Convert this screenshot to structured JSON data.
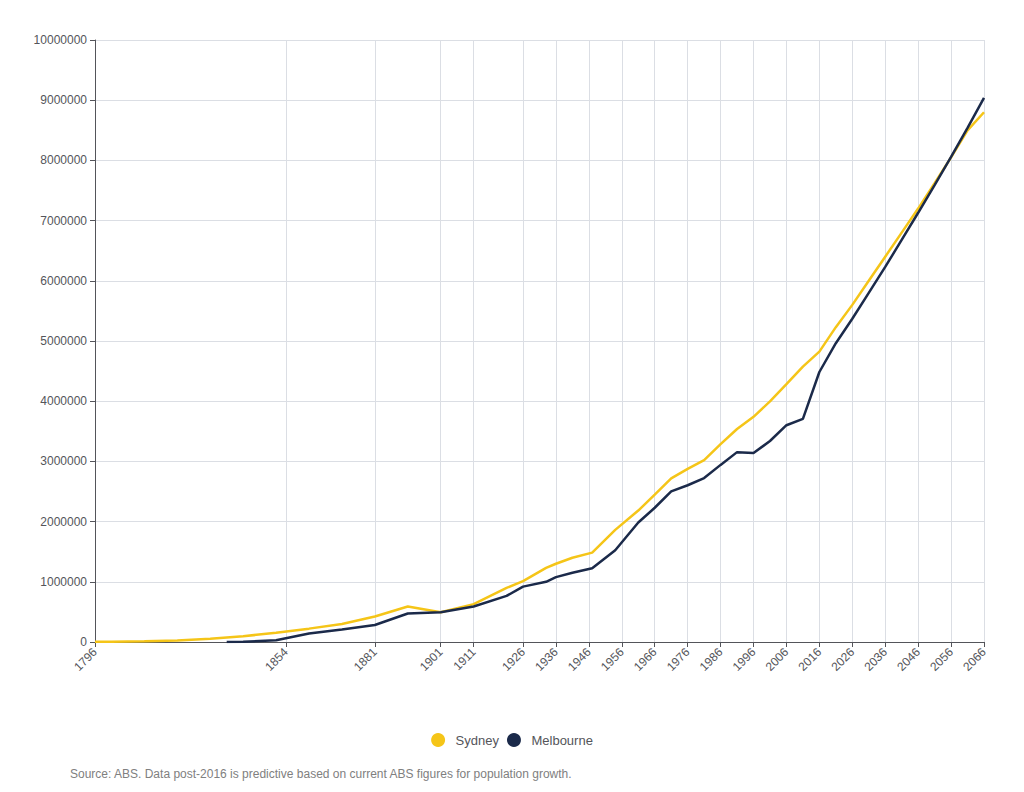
{
  "chart_data": {
    "type": "line",
    "series": [
      {
        "name": "Sydney",
        "color": "#F5C518",
        "x": [
          1796,
          1801,
          1811,
          1821,
          1831,
          1841,
          1851,
          1861,
          1871,
          1881,
          1891,
          1901,
          1911,
          1921,
          1926,
          1933,
          1936,
          1941,
          1947,
          1954,
          1961,
          1966,
          1971,
          1976,
          1981,
          1986,
          1991,
          1996,
          2001,
          2006,
          2011,
          2016,
          2021,
          2026,
          2031,
          2036,
          2041,
          2046,
          2051,
          2056,
          2061,
          2066
        ],
        "values": [
          3000,
          6000,
          12000,
          26000,
          54000,
          95000,
          155000,
          222000,
          300000,
          423000,
          590000,
          493000,
          629000,
          899000,
          1010000,
          1230000,
          1300000,
          1400000,
          1484000,
          1863000,
          2183000,
          2448000,
          2717000,
          2876000,
          3021000,
          3287000,
          3538000,
          3741000,
          3997000,
          4282000,
          4575000,
          4823000,
          5230000,
          5600000,
          6000000,
          6400000,
          6800000,
          7200000,
          7620000,
          8050000,
          8500000,
          8800000
        ]
      },
      {
        "name": "Melbourne",
        "color": "#1B2A4A",
        "x": [
          1836,
          1841,
          1851,
          1861,
          1871,
          1881,
          1891,
          1901,
          1911,
          1921,
          1926,
          1933,
          1936,
          1941,
          1947,
          1954,
          1961,
          1966,
          1971,
          1976,
          1981,
          1986,
          1991,
          1996,
          2001,
          2006,
          2011,
          2016,
          2021,
          2026,
          2031,
          2036,
          2041,
          2046,
          2051,
          2056,
          2061,
          2066
        ],
        "values": [
          177,
          4000,
          29000,
          140000,
          207000,
          282000,
          473000,
          493000,
          589000,
          766000,
          920000,
          1000000,
          1078000,
          1150000,
          1226000,
          1524000,
          1985000,
          2230000,
          2503000,
          2604000,
          2723000,
          2942000,
          3154000,
          3138000,
          3339000,
          3601000,
          3707000,
          4485000,
          4963000,
          5370000,
          5800000,
          6230000,
          6680000,
          7130000,
          7590000,
          8060000,
          8540000,
          9040000
        ]
      }
    ],
    "xlim": [
      1796,
      2066
    ],
    "xticks": [
      1796,
      1854,
      1881,
      1901,
      1911,
      1926,
      1936,
      1946,
      1956,
      1966,
      1976,
      1986,
      1996,
      2006,
      2016,
      2026,
      2036,
      2046,
      2056,
      2066
    ],
    "ylim": [
      0,
      10000000
    ],
    "yticks": [
      0,
      1000000,
      2000000,
      3000000,
      4000000,
      5000000,
      6000000,
      7000000,
      8000000,
      9000000,
      10000000
    ],
    "grid": true,
    "legend": "bottom",
    "annotations": [
      "Source: ABS. Data post-2016 is predictive based on current ABS figures for population growth."
    ]
  }
}
